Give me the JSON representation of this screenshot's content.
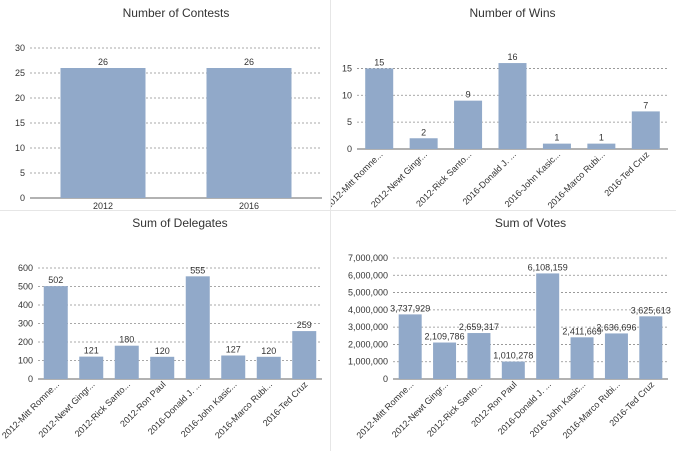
{
  "colors": {
    "bar": "#91a9c9",
    "grid": "#8c8c8c",
    "axis": "#666666",
    "text": "#333333"
  },
  "chart_data": [
    {
      "type": "bar",
      "title": "Number of Contests",
      "categories": [
        "2012",
        "2016"
      ],
      "values": [
        26,
        26
      ],
      "data_labels": [
        "26",
        "26"
      ],
      "yticks": [
        "0",
        "5",
        "10",
        "15",
        "20",
        "25",
        "30"
      ],
      "ylim": [
        0,
        30
      ],
      "xlabel": "",
      "ylabel": "",
      "rotate_labels": false
    },
    {
      "type": "bar",
      "title": "Number of Wins",
      "categories": [
        "2012-Mitt Romne...",
        "2012-Newt Gingr...",
        "2012-Rick Santo...",
        "2016-Donald J. ...",
        "2016-John Kasic...",
        "2016-Marco Rubi...",
        "2016-Ted Cruz"
      ],
      "values": [
        15,
        2,
        9,
        16,
        1,
        1,
        7
      ],
      "data_labels": [
        "15",
        "2",
        "9",
        "16",
        "1",
        "1",
        "7"
      ],
      "yticks": [
        "0",
        "5",
        "10",
        "15"
      ],
      "ylim": [
        0,
        17.5
      ],
      "xlabel": "",
      "ylabel": "",
      "rotate_labels": true
    },
    {
      "type": "bar",
      "title": "Sum of Delegates",
      "categories": [
        "2012-Mitt Romne...",
        "2012-Newt Gingr...",
        "2012-Rick Santo...",
        "2012-Ron Paul",
        "2016-Donald J. ...",
        "2016-John Kasic...",
        "2016-Marco Rubi...",
        "2016-Ted Cruz"
      ],
      "values": [
        502,
        121,
        180,
        120,
        555,
        127,
        120,
        259
      ],
      "data_labels": [
        "502",
        "121",
        "180",
        "120",
        "555",
        "127",
        "120",
        "259"
      ],
      "yticks": [
        "0",
        "100",
        "200",
        "300",
        "400",
        "500",
        "600"
      ],
      "ylim": [
        0,
        600
      ],
      "xlabel": "",
      "ylabel": "",
      "rotate_labels": true
    },
    {
      "type": "bar",
      "title": "Sum of Votes",
      "categories": [
        "2012-Mitt Romne...",
        "2012-Newt Gingr...",
        "2012-Rick Santo...",
        "2012-Ron Paul",
        "2016-Donald J. ...",
        "2016-John Kasic...",
        "2016-Marco Rubi...",
        "2016-Ted Cruz"
      ],
      "values": [
        3737929,
        2109786,
        2659317,
        1010278,
        6108159,
        2411669,
        2636696,
        3625613
      ],
      "data_labels": [
        "3,737,929",
        "2,109,786",
        "2,659,317",
        "1,010,278",
        "6,108,159",
        "2,411,669",
        "2,636,696",
        "3,625,613"
      ],
      "yticks": [
        "0",
        "1,000,000",
        "2,000,000",
        "3,000,000",
        "4,000,000",
        "5,000,000",
        "6,000,000",
        "7,000,000"
      ],
      "ylim": [
        0,
        7000000
      ],
      "xlabel": "",
      "ylabel": "",
      "rotate_labels": true
    }
  ]
}
